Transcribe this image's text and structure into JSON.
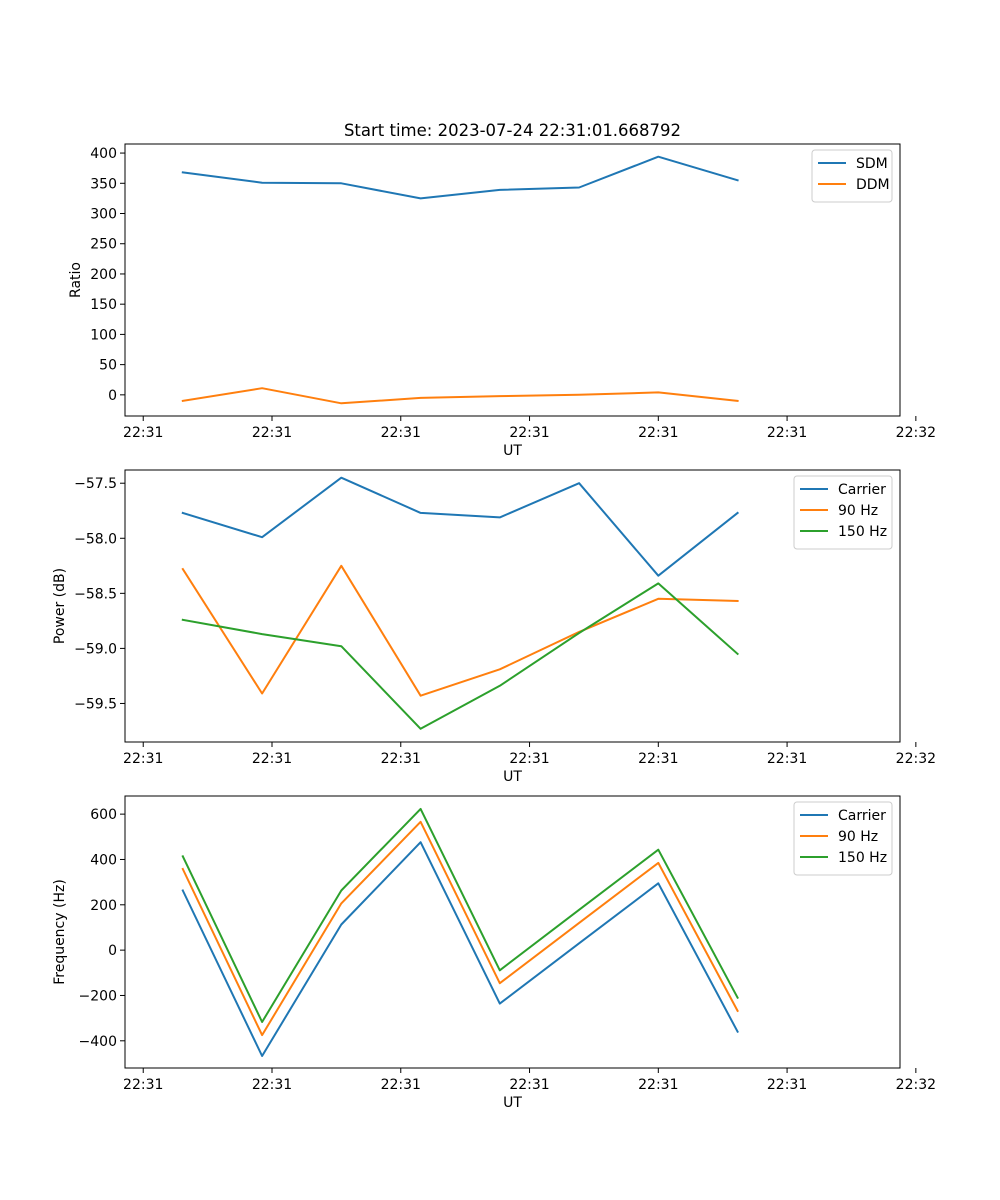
{
  "title": "Start time: 2023-07-24 22:31:01.668792",
  "colors": {
    "blue": "#1f77b4",
    "orange": "#ff7f0e",
    "green": "#2ca02c"
  },
  "chart_data": [
    {
      "type": "line",
      "title": "Start time: 2023-07-24 22:31:01.668792",
      "xlabel": "UT",
      "ylabel": "Ratio",
      "xlim": [
        -0.73,
        9.05
      ],
      "ylim": [
        -35,
        415
      ],
      "x_ticks": [
        {
          "value": -0.5,
          "label": "22:31"
        },
        {
          "value": 1.125,
          "label": "22:31"
        },
        {
          "value": 2.75,
          "label": "22:31"
        },
        {
          "value": 4.375,
          "label": "22:31"
        },
        {
          "value": 6.0,
          "label": "22:31"
        },
        {
          "value": 7.625,
          "label": "22:31"
        },
        {
          "value": 9.25,
          "label": "22:32"
        }
      ],
      "y_ticks": [
        {
          "value": 0,
          "label": "0"
        },
        {
          "value": 50,
          "label": "50"
        },
        {
          "value": 100,
          "label": "100"
        },
        {
          "value": 150,
          "label": "150"
        },
        {
          "value": 200,
          "label": "200"
        },
        {
          "value": 250,
          "label": "250"
        },
        {
          "value": 300,
          "label": "300"
        },
        {
          "value": 350,
          "label": "350"
        },
        {
          "value": 400,
          "label": "400"
        }
      ],
      "x": [
        0,
        1,
        2,
        3,
        4,
        5,
        6,
        7
      ],
      "legend": "top-right",
      "series": [
        {
          "name": "SDM",
          "color": "#1f77b4",
          "values": [
            368,
            351,
            350,
            325,
            339,
            343,
            394,
            355
          ]
        },
        {
          "name": "DDM",
          "color": "#ff7f0e",
          "values": [
            -10,
            11,
            -14,
            -5,
            -2,
            0,
            4,
            -10
          ]
        }
      ]
    },
    {
      "type": "line",
      "xlabel": "UT",
      "ylabel": "Power (dB)",
      "xlim": [
        -0.73,
        9.05
      ],
      "ylim": [
        -59.85,
        -57.38
      ],
      "x_ticks": [
        {
          "value": -0.5,
          "label": "22:31"
        },
        {
          "value": 1.125,
          "label": "22:31"
        },
        {
          "value": 2.75,
          "label": "22:31"
        },
        {
          "value": 4.375,
          "label": "22:31"
        },
        {
          "value": 6.0,
          "label": "22:31"
        },
        {
          "value": 7.625,
          "label": "22:31"
        },
        {
          "value": 9.25,
          "label": "22:32"
        }
      ],
      "y_ticks": [
        {
          "value": -59.5,
          "label": "−59.5"
        },
        {
          "value": -59.0,
          "label": "−59.0"
        },
        {
          "value": -58.5,
          "label": "−58.5"
        },
        {
          "value": -58.0,
          "label": "−58.0"
        },
        {
          "value": -57.5,
          "label": "−57.5"
        }
      ],
      "x": [
        0,
        1,
        2,
        3,
        4,
        5,
        6,
        7
      ],
      "legend": "top-right",
      "series": [
        {
          "name": "Carrier",
          "color": "#1f77b4",
          "values": [
            -57.77,
            -57.99,
            -57.45,
            -57.77,
            -57.81,
            -57.5,
            -58.34,
            -57.77
          ]
        },
        {
          "name": "90 Hz",
          "color": "#ff7f0e",
          "values": [
            -58.28,
            -59.41,
            -58.25,
            -59.43,
            -59.19,
            -58.85,
            -58.55,
            -58.57
          ]
        },
        {
          "name": "150 Hz",
          "color": "#2ca02c",
          "values": [
            -58.74,
            -58.87,
            -58.98,
            -59.73,
            -59.34,
            -58.86,
            -58.41,
            -59.05
          ]
        }
      ]
    },
    {
      "type": "line",
      "xlabel": "UT",
      "ylabel": "Frequency (Hz)",
      "xlim": [
        -0.73,
        9.05
      ],
      "ylim": [
        -520,
        680
      ],
      "x_ticks": [
        {
          "value": -0.5,
          "label": "22:31"
        },
        {
          "value": 1.125,
          "label": "22:31"
        },
        {
          "value": 2.75,
          "label": "22:31"
        },
        {
          "value": 4.375,
          "label": "22:31"
        },
        {
          "value": 6.0,
          "label": "22:31"
        },
        {
          "value": 7.625,
          "label": "22:31"
        },
        {
          "value": 9.25,
          "label": "22:32"
        }
      ],
      "y_ticks": [
        {
          "value": -400,
          "label": "−400"
        },
        {
          "value": -200,
          "label": "−200"
        },
        {
          "value": 0,
          "label": "0"
        },
        {
          "value": 200,
          "label": "200"
        },
        {
          "value": 400,
          "label": "400"
        },
        {
          "value": 600,
          "label": "600"
        }
      ],
      "x": [
        0,
        1,
        2,
        3,
        4,
        5,
        6,
        7
      ],
      "legend": "top-right",
      "series": [
        {
          "name": "Carrier",
          "color": "#1f77b4",
          "values": [
            263,
            -467,
            113,
            476,
            -236,
            30,
            295,
            -360
          ]
        },
        {
          "name": "90 Hz",
          "color": "#ff7f0e",
          "values": [
            358,
            -375,
            206,
            566,
            -146,
            120,
            385,
            -268
          ]
        },
        {
          "name": "150 Hz",
          "color": "#2ca02c",
          "values": [
            414,
            -317,
            263,
            623,
            -89,
            178,
            443,
            -210
          ]
        }
      ]
    }
  ]
}
